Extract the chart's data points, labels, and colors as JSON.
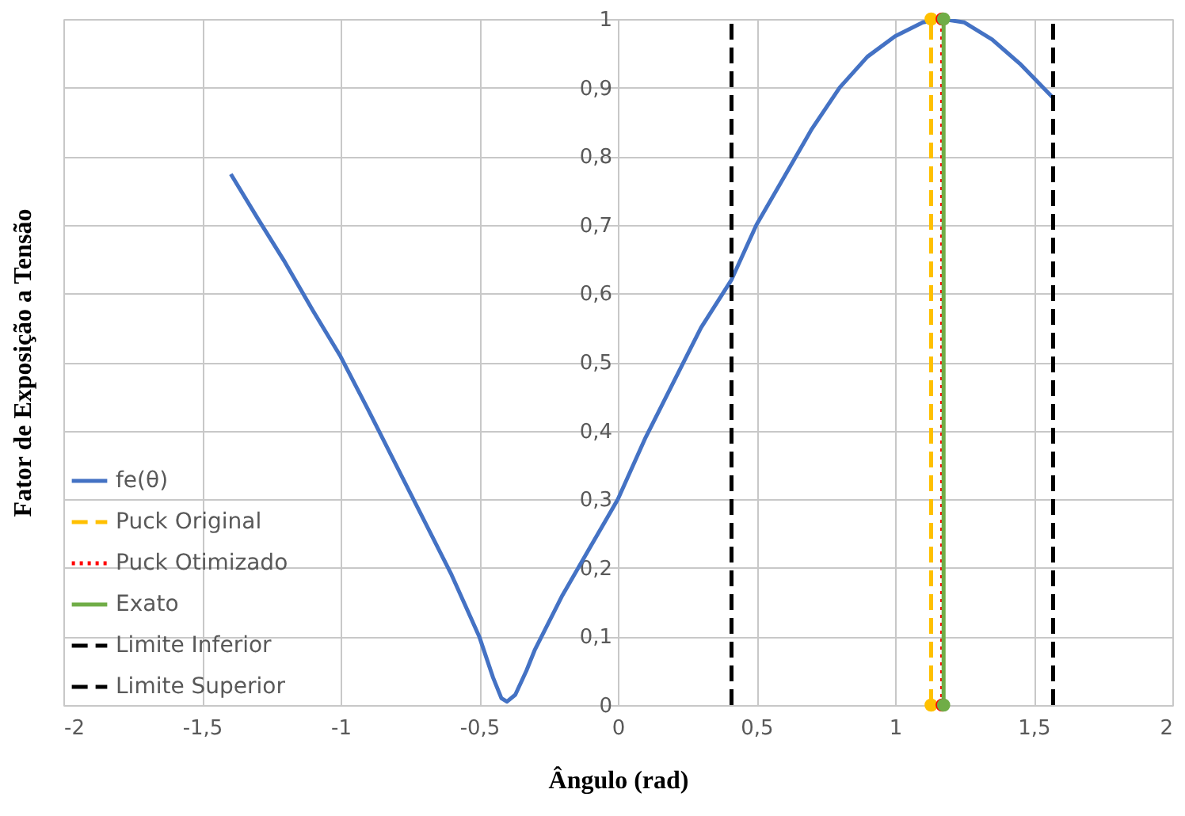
{
  "chart_data": {
    "type": "line",
    "xlabel": "Ângulo (rad)",
    "ylabel": "Fator de Exposição a Tensão",
    "xlim": [
      -2,
      2
    ],
    "ylim": [
      0,
      1
    ],
    "xticks": [
      -2,
      {
        "value": -1.5,
        "label": "-1,5"
      },
      -1,
      {
        "value": -0.5,
        "label": "-0,5"
      },
      0,
      {
        "value": 0.5,
        "label": "0,5"
      },
      1,
      {
        "value": 1.5,
        "label": "1,5"
      },
      2
    ],
    "yticks": [
      0,
      {
        "value": 0.1,
        "label": "0,1"
      },
      {
        "value": 0.2,
        "label": "0,2"
      },
      {
        "value": 0.3,
        "label": "0,3"
      },
      {
        "value": 0.4,
        "label": "0,4"
      },
      {
        "value": 0.5,
        "label": "0,5"
      },
      {
        "value": 0.6,
        "label": "0,6"
      },
      {
        "value": 0.7,
        "label": "0,7"
      },
      {
        "value": 0.8,
        "label": "0,8"
      },
      {
        "value": 0.9,
        "label": "0,9"
      },
      1
    ],
    "grid": true,
    "legend": "bottom left",
    "series": [
      {
        "name": "fe(θ)",
        "color": "#4472c4",
        "line_style": "solid",
        "marker": "none",
        "x": [
          -1.396,
          -1.3,
          -1.2,
          -1.1,
          -1.0,
          -0.9,
          -0.8,
          -0.7,
          -0.6,
          -0.5,
          -0.45,
          -0.42,
          -0.4,
          -0.37,
          -0.33,
          -0.3,
          -0.2,
          -0.1,
          0,
          0.1,
          0.2,
          0.3,
          0.41,
          0.5,
          0.6,
          0.7,
          0.8,
          0.9,
          1.0,
          1.1,
          1.17,
          1.25,
          1.35,
          1.45,
          1.57
        ],
        "values": [
          0.774,
          0.71,
          0.645,
          0.575,
          0.508,
          0.43,
          0.35,
          0.27,
          0.19,
          0.1,
          0.04,
          0.01,
          0.005,
          0.015,
          0.05,
          0.08,
          0.16,
          0.23,
          0.3,
          0.39,
          0.47,
          0.55,
          0.62,
          0.7,
          0.77,
          0.84,
          0.9,
          0.945,
          0.975,
          0.995,
          1.0,
          0.995,
          0.97,
          0.935,
          0.885
        ]
      },
      {
        "name": "Puck Original",
        "color": "#ffc000",
        "line_style": "dashed",
        "marker": "circle",
        "x": [
          1.13,
          1.13
        ],
        "values": [
          0,
          1
        ]
      },
      {
        "name": "Puck Otimizado",
        "color": "#ff0000",
        "line_style": "dotted",
        "marker": "circle",
        "x": [
          1.17,
          1.17
        ],
        "values": [
          0,
          1
        ]
      },
      {
        "name": "Exato",
        "color": "#70ad47",
        "line_style": "solid",
        "marker": "circle",
        "x": [
          1.175,
          1.175
        ],
        "values": [
          0,
          1
        ]
      },
      {
        "name": "Limite Inferior",
        "color": "#000000",
        "line_style": "dashed",
        "marker": "none",
        "x": [
          0.41,
          0.41
        ],
        "values": [
          0,
          1
        ]
      },
      {
        "name": "Limite Superior",
        "color": "#000000",
        "line_style": "dashed",
        "marker": "none",
        "x": [
          1.57,
          1.57
        ],
        "values": [
          0,
          1
        ]
      }
    ]
  }
}
